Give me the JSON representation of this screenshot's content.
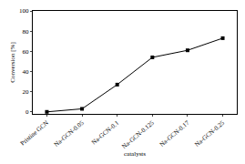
{
  "chart_data": {
    "type": "line",
    "categories": [
      "Pristine GCN",
      "Na-GCN-0.05",
      "Na-GCN-0.1",
      "Na-GCN-0.125",
      "Na-GCN-0.17",
      "Na-GCN-0.25"
    ],
    "values": [
      0,
      3,
      27,
      54,
      61,
      73
    ],
    "color": "#000000",
    "marker": "square",
    "line_style": "solid",
    "x_label": "catalysts",
    "y_label": "Conversion [%]",
    "ylim": [
      -2,
      100
    ],
    "yticks": [
      0,
      20,
      40,
      60,
      80,
      100
    ],
    "grid": false
  }
}
